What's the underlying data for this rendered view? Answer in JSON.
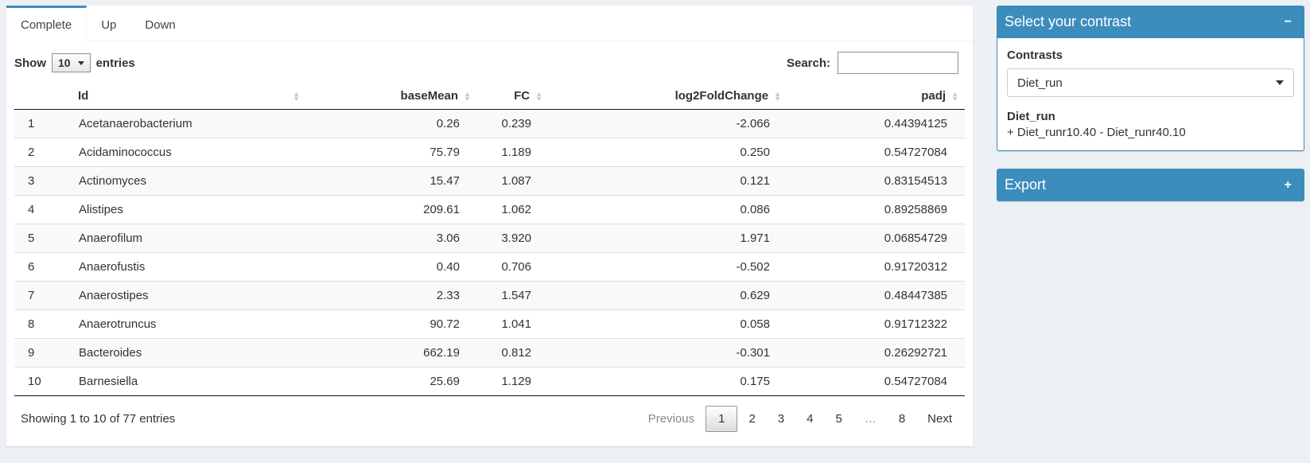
{
  "tabs": [
    {
      "label": "Complete",
      "active": true
    },
    {
      "label": "Up",
      "active": false
    },
    {
      "label": "Down",
      "active": false
    }
  ],
  "table_controls": {
    "show_label": "Show",
    "page_length": "10",
    "entries_label": "entries",
    "search_label": "Search:",
    "search_value": ""
  },
  "table": {
    "columns": [
      {
        "label": "",
        "sortable": false,
        "align": "left"
      },
      {
        "label": "Id",
        "sortable": true,
        "align": "left"
      },
      {
        "label": "baseMean",
        "sortable": true,
        "align": "right"
      },
      {
        "label": "FC",
        "sortable": true,
        "align": "right"
      },
      {
        "label": "log2FoldChange",
        "sortable": true,
        "align": "right"
      },
      {
        "label": "padj",
        "sortable": true,
        "align": "right"
      }
    ],
    "rows": [
      [
        "1",
        "Acetanaerobacterium",
        "0.26",
        "0.239",
        "-2.066",
        "0.44394125"
      ],
      [
        "2",
        "Acidaminococcus",
        "75.79",
        "1.189",
        "0.250",
        "0.54727084"
      ],
      [
        "3",
        "Actinomyces",
        "15.47",
        "1.087",
        "0.121",
        "0.83154513"
      ],
      [
        "4",
        "Alistipes",
        "209.61",
        "1.062",
        "0.086",
        "0.89258869"
      ],
      [
        "5",
        "Anaerofilum",
        "3.06",
        "3.920",
        "1.971",
        "0.06854729"
      ],
      [
        "6",
        "Anaerofustis",
        "0.40",
        "0.706",
        "-0.502",
        "0.91720312"
      ],
      [
        "7",
        "Anaerostipes",
        "2.33",
        "1.547",
        "0.629",
        "0.48447385"
      ],
      [
        "8",
        "Anaerotruncus",
        "90.72",
        "1.041",
        "0.058",
        "0.91712322"
      ],
      [
        "9",
        "Bacteroides",
        "662.19",
        "0.812",
        "-0.301",
        "0.26292721"
      ],
      [
        "10",
        "Barnesiella",
        "25.69",
        "1.129",
        "0.175",
        "0.54727084"
      ]
    ]
  },
  "table_footer": {
    "info": "Showing 1 to 10 of 77 entries",
    "pagination": [
      {
        "label": "Previous",
        "type": "disabled"
      },
      {
        "label": "1",
        "type": "current"
      },
      {
        "label": "2",
        "type": "page"
      },
      {
        "label": "3",
        "type": "page"
      },
      {
        "label": "4",
        "type": "page"
      },
      {
        "label": "5",
        "type": "page"
      },
      {
        "label": "…",
        "type": "ellipsis"
      },
      {
        "label": "8",
        "type": "page"
      },
      {
        "label": "Next",
        "type": "page"
      }
    ]
  },
  "contrast_box": {
    "title": "Select your contrast",
    "collapse_icon": "−",
    "contrasts_label": "Contrasts",
    "selected_contrast": "Diet_run",
    "contrast_name": "Diet_run",
    "contrast_formula": "+ Diet_runr10.40 - Diet_runr40.10"
  },
  "export_box": {
    "title": "Export",
    "collapse_icon": "+"
  },
  "colors": {
    "accent": "#3c8dbc",
    "page_bg": "#ecf0f5"
  }
}
